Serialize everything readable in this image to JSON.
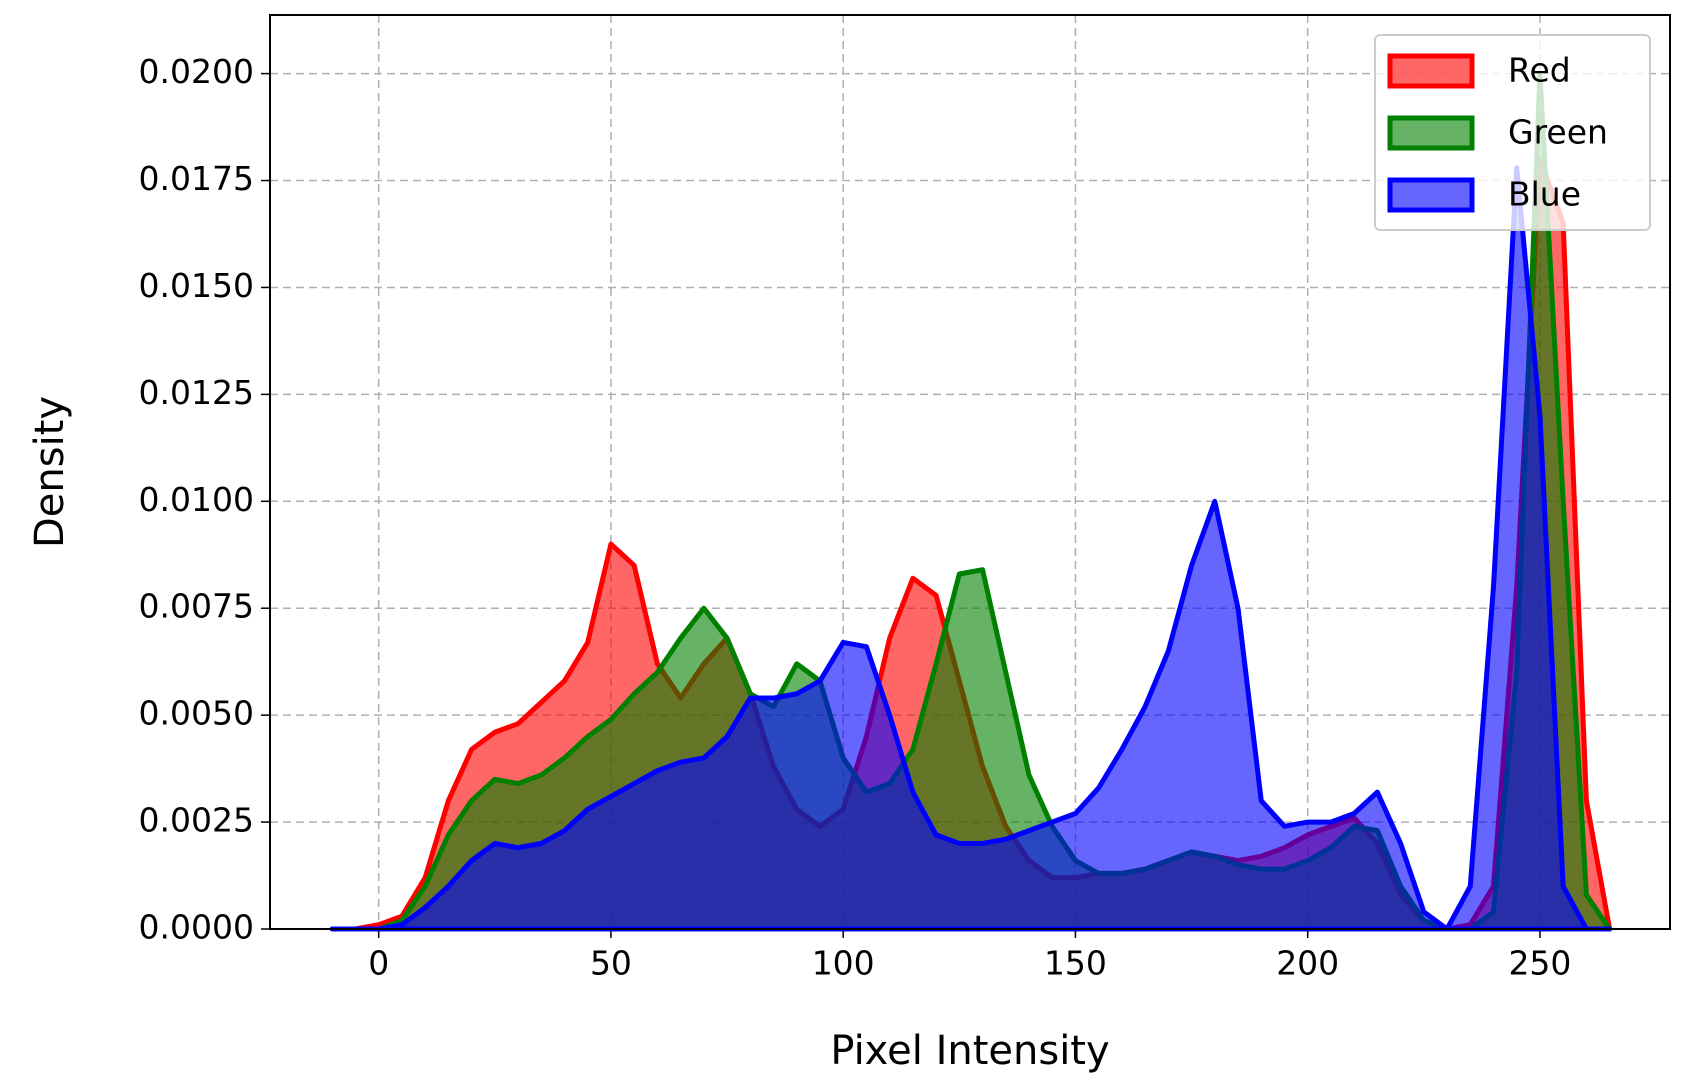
{
  "chart_data": {
    "type": "area",
    "x_label": "Pixel Intensity",
    "y_label": "Density",
    "x": [
      -10,
      -5,
      0,
      5,
      10,
      15,
      20,
      25,
      30,
      35,
      40,
      45,
      50,
      55,
      60,
      65,
      70,
      75,
      80,
      85,
      90,
      95,
      100,
      105,
      110,
      115,
      120,
      125,
      130,
      135,
      140,
      145,
      150,
      155,
      160,
      165,
      170,
      175,
      180,
      185,
      190,
      195,
      200,
      205,
      210,
      215,
      220,
      225,
      230,
      235,
      240,
      245,
      250,
      255,
      260,
      265
    ],
    "series": [
      {
        "name": "Red",
        "color": "#ff0000",
        "values": [
          0,
          0,
          0.0001,
          0.0003,
          0.0012,
          0.003,
          0.0042,
          0.0046,
          0.0048,
          0.0053,
          0.0058,
          0.0067,
          0.009,
          0.0085,
          0.0062,
          0.0054,
          0.0062,
          0.0068,
          0.0055,
          0.0038,
          0.0028,
          0.0024,
          0.0028,
          0.0045,
          0.0068,
          0.0082,
          0.0078,
          0.0058,
          0.0038,
          0.0024,
          0.0016,
          0.0012,
          0.0012,
          0.0013,
          0.0013,
          0.0014,
          0.0016,
          0.0018,
          0.0017,
          0.0016,
          0.0017,
          0.0019,
          0.0022,
          0.0024,
          0.0026,
          0.002,
          0.0008,
          0.0002,
          0,
          0.0001,
          0.001,
          0.008,
          0.018,
          0.0165,
          0.003,
          0
        ]
      },
      {
        "name": "Green",
        "color": "#008000",
        "values": [
          0,
          0,
          0,
          0.0002,
          0.001,
          0.0022,
          0.003,
          0.0035,
          0.0034,
          0.0036,
          0.004,
          0.0045,
          0.0049,
          0.0055,
          0.006,
          0.0068,
          0.0075,
          0.0068,
          0.0055,
          0.0052,
          0.0062,
          0.0058,
          0.004,
          0.0032,
          0.0034,
          0.0042,
          0.0062,
          0.0083,
          0.0084,
          0.006,
          0.0036,
          0.0024,
          0.0016,
          0.0013,
          0.0013,
          0.0014,
          0.0016,
          0.0018,
          0.0017,
          0.0015,
          0.0014,
          0.0014,
          0.0016,
          0.0019,
          0.0024,
          0.0023,
          0.001,
          0.0002,
          0,
          0,
          0.0004,
          0.006,
          0.02,
          0.01,
          0.0008,
          0
        ]
      },
      {
        "name": "Blue",
        "color": "#0000ff",
        "values": [
          0,
          0,
          0,
          0.0001,
          0.0005,
          0.001,
          0.0016,
          0.002,
          0.0019,
          0.002,
          0.0023,
          0.0028,
          0.0031,
          0.0034,
          0.0037,
          0.0039,
          0.004,
          0.0045,
          0.0054,
          0.0054,
          0.0055,
          0.0058,
          0.0067,
          0.0066,
          0.005,
          0.0032,
          0.0022,
          0.002,
          0.002,
          0.0021,
          0.0023,
          0.0025,
          0.0027,
          0.0033,
          0.0042,
          0.0052,
          0.0065,
          0.0085,
          0.01,
          0.0075,
          0.003,
          0.0024,
          0.0025,
          0.0025,
          0.0027,
          0.0032,
          0.002,
          0.0004,
          0,
          0.001,
          0.008,
          0.0178,
          0.012,
          0.001,
          0,
          0
        ]
      }
    ],
    "xlim": [
      -23.4,
      278
    ],
    "ylim": [
      0,
      0.02137
    ],
    "xticks": [
      0,
      50,
      100,
      150,
      200,
      250
    ],
    "yticks": [
      {
        "value": 0,
        "label": "0.0000"
      },
      {
        "value": 0.0025,
        "label": "0.0025"
      },
      {
        "value": 0.005,
        "label": "0.0050"
      },
      {
        "value": 0.0075,
        "label": "0.0075"
      },
      {
        "value": 0.01,
        "label": "0.0100"
      },
      {
        "value": 0.0125,
        "label": "0.0125"
      },
      {
        "value": 0.015,
        "label": "0.0150"
      },
      {
        "value": 0.0175,
        "label": "0.0175"
      },
      {
        "value": 0.02,
        "label": "0.0200"
      }
    ],
    "grid": true,
    "legend": "upper right",
    "alpha": 0.6
  }
}
